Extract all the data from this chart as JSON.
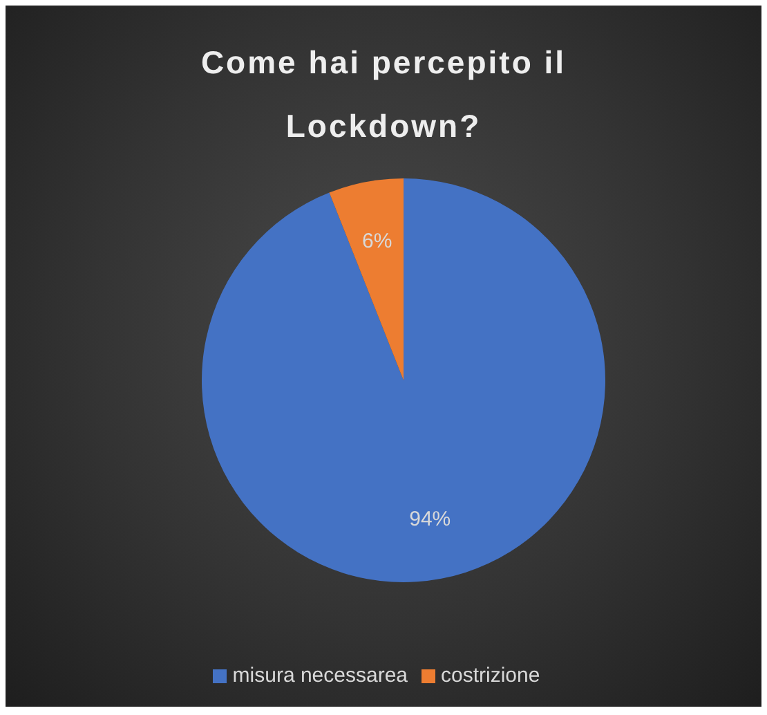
{
  "chart_data": {
    "type": "pie",
    "title": "Come hai percepito il Lockdown?",
    "categories": [
      "misura necessarea",
      "costrizione"
    ],
    "values": [
      94,
      6
    ],
    "colors": [
      "#4472c4",
      "#ed7d31"
    ],
    "value_labels": [
      "94%",
      "6%"
    ],
    "legend": "bottom"
  }
}
